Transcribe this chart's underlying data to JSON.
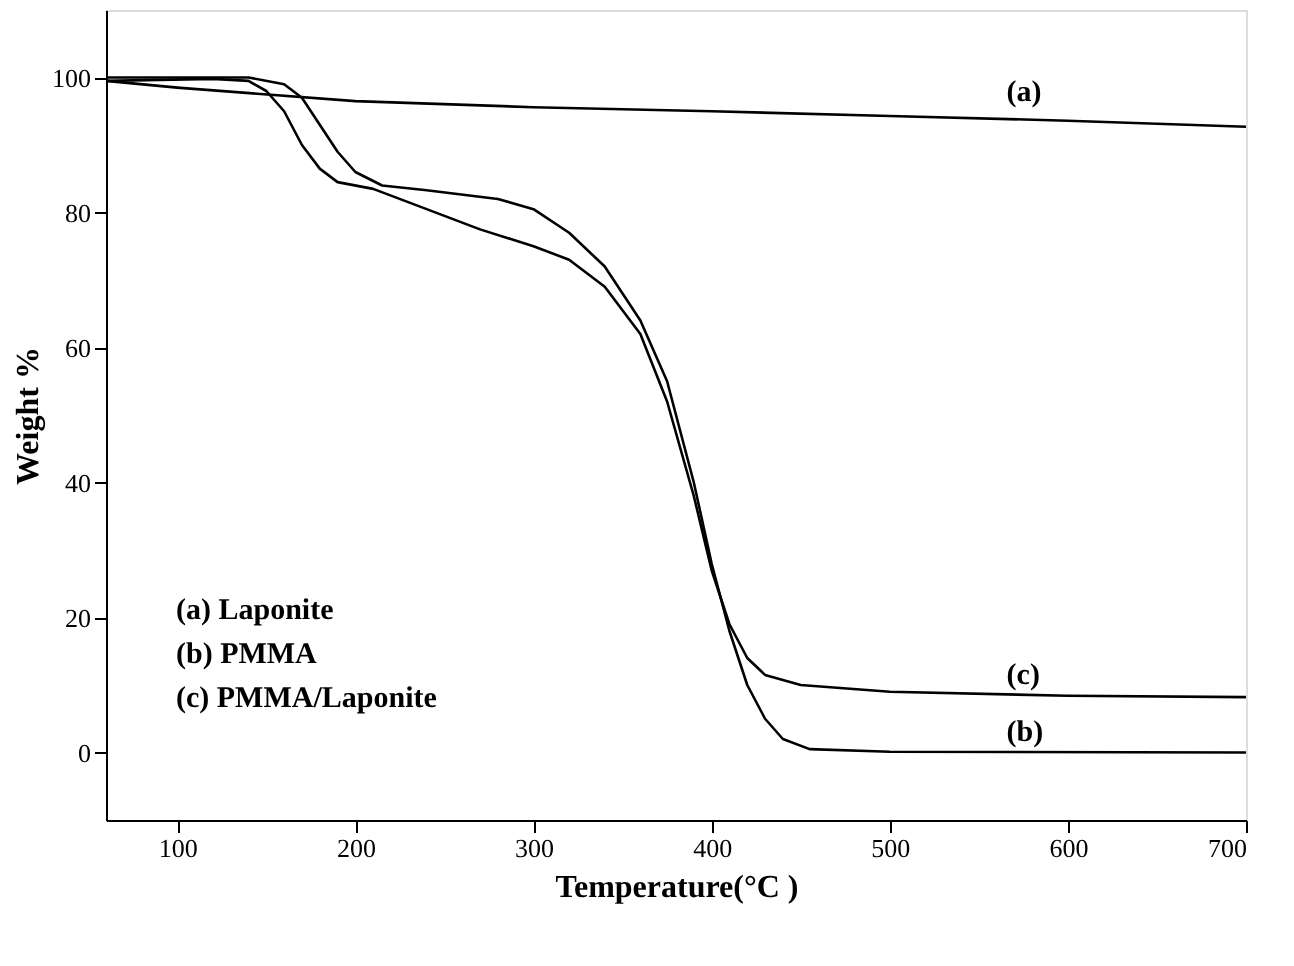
{
  "chart_data": {
    "type": "line",
    "xlabel": "Temperature(°C )",
    "ylabel": "Weight %",
    "xlim": [
      60,
      700
    ],
    "xticks": [
      100,
      200,
      300,
      400,
      500,
      600,
      700
    ],
    "ylim": [
      -10,
      110
    ],
    "yticks": [
      0,
      20,
      40,
      60,
      80,
      100
    ],
    "grid": false,
    "marker": "none",
    "line_style": "solid",
    "series": [
      {
        "color": "#000000",
        "x": [
          60,
          100,
          200,
          300,
          400,
          500,
          600,
          700
        ],
        "values": [
          99.5,
          98.5,
          96.5,
          95.6,
          95,
          94.3,
          93.6,
          92.7
        ]
      },
      {
        "color": "#000000",
        "x": [
          60,
          140,
          160,
          170,
          180,
          190,
          200,
          215,
          240,
          280,
          300,
          320,
          340,
          360,
          375,
          390,
          400,
          410,
          420,
          430,
          440,
          455,
          500,
          700
        ],
        "values": [
          100,
          100,
          99,
          97,
          93,
          89,
          86,
          84,
          83.3,
          82,
          80.5,
          77,
          72,
          64,
          55,
          40,
          28,
          18,
          10,
          5,
          2,
          0.5,
          0.1,
          0
        ]
      },
      {
        "color": "#000000",
        "x": [
          60,
          120,
          140,
          150,
          160,
          170,
          180,
          190,
          210,
          240,
          270,
          300,
          320,
          340,
          360,
          375,
          390,
          400,
          410,
          420,
          430,
          450,
          500,
          600,
          700
        ],
        "values": [
          99.5,
          99.8,
          99.5,
          98,
          95,
          90,
          86.5,
          84.5,
          83.5,
          80.5,
          77.5,
          75,
          73,
          69,
          62,
          52,
          38,
          27,
          19,
          14,
          11.5,
          10,
          9,
          8.4,
          8.2
        ]
      }
    ],
    "annotations": [
      "(a)",
      "(c)",
      "(b)",
      "(a) Laponite",
      "(b) PMMA",
      "(c) PMMA/Laponite"
    ]
  }
}
